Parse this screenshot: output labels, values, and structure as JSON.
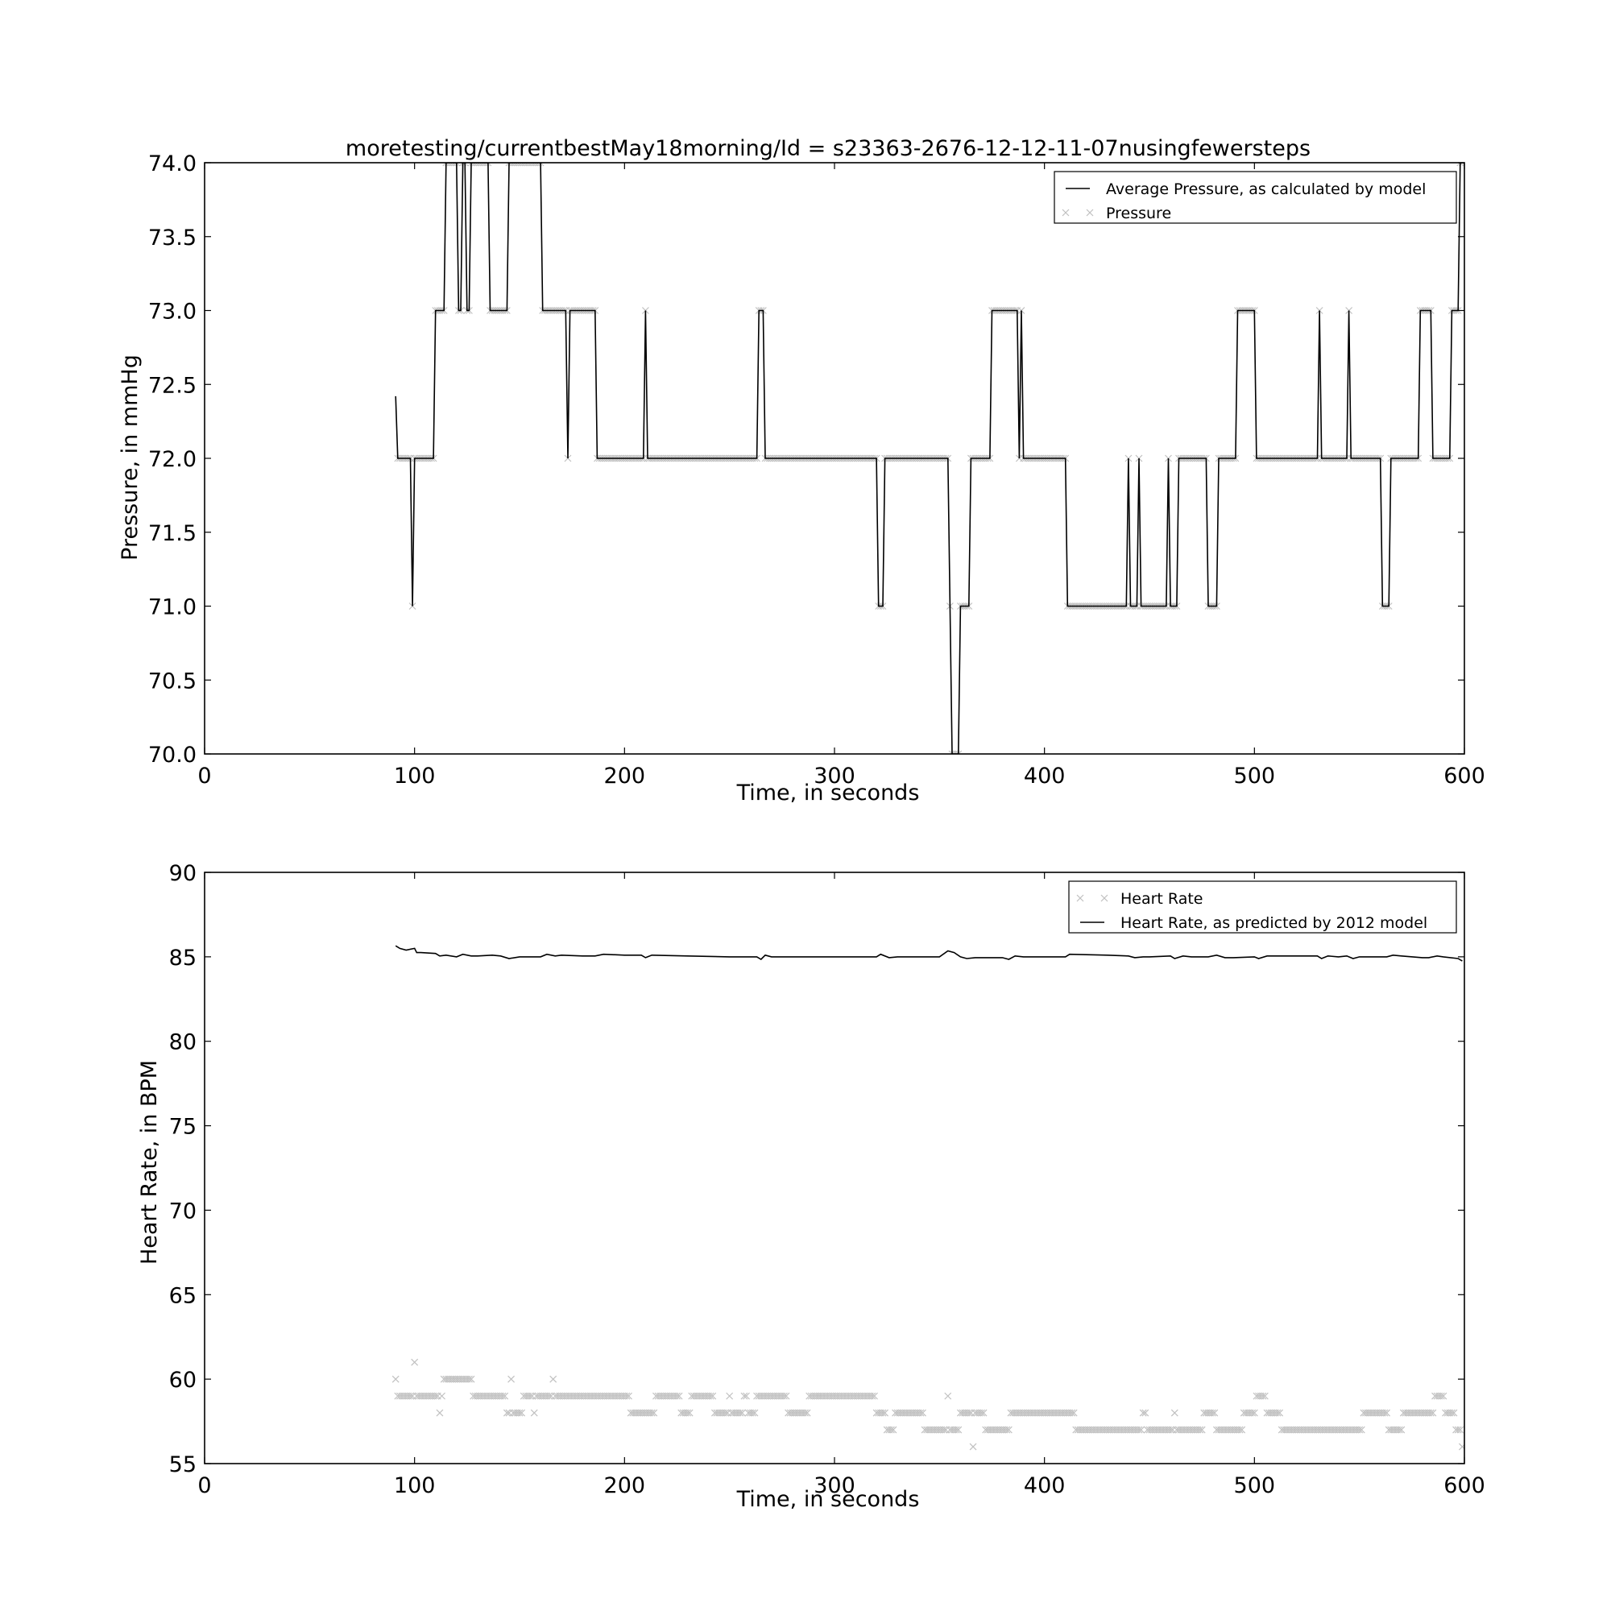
{
  "chart_data": [
    {
      "type": "line",
      "title": "moretesting/currentbestMay18morning/Id = s23363-2676-12-12-11-07nusingfewersteps",
      "xlabel": "Time, in seconds",
      "ylabel": "Pressure, in mmHg",
      "xlim": [
        0,
        600
      ],
      "ylim": [
        70.0,
        74.0
      ],
      "xticks": [
        "0",
        "100",
        "200",
        "300",
        "400",
        "500",
        "600"
      ],
      "yticks": [
        "70.0",
        "70.5",
        "71.0",
        "71.5",
        "72.0",
        "72.5",
        "73.0",
        "73.5",
        "74.0"
      ],
      "grid": false,
      "legend_position": "top-right",
      "series": [
        {
          "name": "Average Pressure, as calculated by model",
          "style": "line",
          "color": "#000000",
          "x": [
            91,
            92,
            93,
            98,
            99,
            100,
            101,
            109,
            110,
            114,
            115,
            120,
            121,
            122,
            123,
            124,
            125,
            126,
            127,
            128,
            129,
            135,
            136,
            144,
            145,
            160,
            161,
            172,
            173,
            174,
            186,
            187,
            209,
            210,
            211,
            263,
            264,
            266,
            267,
            320,
            321,
            323,
            324,
            354,
            355,
            356,
            357,
            359,
            360,
            364,
            365,
            374,
            375,
            387,
            388,
            389,
            390,
            410,
            411,
            439,
            440,
            441,
            442,
            444,
            445,
            446,
            447,
            458,
            459,
            460,
            461,
            463,
            464,
            477,
            478,
            482,
            483,
            491,
            492,
            500,
            501,
            530,
            531,
            532,
            533,
            544,
            545,
            546,
            547,
            560,
            561,
            564,
            565,
            578,
            579,
            584,
            585,
            593,
            594,
            597,
            598,
            599
          ],
          "y": [
            72.42,
            72.0,
            72.0,
            72.0,
            71.0,
            72.0,
            72.0,
            72.0,
            73.0,
            73.0,
            74.0,
            74.0,
            73.0,
            73.0,
            74.0,
            74.0,
            73.0,
            73.0,
            74.0,
            74.0,
            74.0,
            74.0,
            73.0,
            73.0,
            74.0,
            74.0,
            73.0,
            73.0,
            72.0,
            73.0,
            73.0,
            72.0,
            72.0,
            73.0,
            72.0,
            72.0,
            73.0,
            73.0,
            72.0,
            72.0,
            71.0,
            71.0,
            72.0,
            72.0,
            71.0,
            70.0,
            70.0,
            70.0,
            71.0,
            71.0,
            72.0,
            72.0,
            73.0,
            73.0,
            72.0,
            73.0,
            72.0,
            72.0,
            71.0,
            71.0,
            72.0,
            71.0,
            71.0,
            71.0,
            72.0,
            71.0,
            71.0,
            71.0,
            72.0,
            71.0,
            71.0,
            71.0,
            72.0,
            72.0,
            71.0,
            71.0,
            72.0,
            72.0,
            73.0,
            73.0,
            72.0,
            72.0,
            73.0,
            72.0,
            72.0,
            72.0,
            73.0,
            72.0,
            72.0,
            72.0,
            71.0,
            71.0,
            72.0,
            72.0,
            73.0,
            73.0,
            72.0,
            72.0,
            73.0,
            73.0,
            74.0,
            74.0
          ]
        },
        {
          "name": "Pressure",
          "style": "marker-x",
          "color": "#c0c0c0",
          "segments": [
            {
              "from": 92,
              "to": 98,
              "y": 72.0
            },
            {
              "from": 99,
              "to": 99,
              "y": 71.0
            },
            {
              "from": 100,
              "to": 109,
              "y": 72.0
            },
            {
              "from": 110,
              "to": 114,
              "y": 73.0
            },
            {
              "from": 115,
              "to": 120,
              "y": 74.0
            },
            {
              "from": 121,
              "to": 122,
              "y": 73.0
            },
            {
              "from": 123,
              "to": 124,
              "y": 74.0
            },
            {
              "from": 125,
              "to": 126,
              "y": 73.0
            },
            {
              "from": 127,
              "to": 135,
              "y": 74.0
            },
            {
              "from": 136,
              "to": 144,
              "y": 73.0
            },
            {
              "from": 145,
              "to": 160,
              "y": 74.0
            },
            {
              "from": 161,
              "to": 172,
              "y": 73.0
            },
            {
              "from": 173,
              "to": 173,
              "y": 72.0
            },
            {
              "from": 174,
              "to": 186,
              "y": 73.0
            },
            {
              "from": 187,
              "to": 209,
              "y": 72.0
            },
            {
              "from": 210,
              "to": 210,
              "y": 73.0
            },
            {
              "from": 211,
              "to": 263,
              "y": 72.0
            },
            {
              "from": 264,
              "to": 266,
              "y": 73.0
            },
            {
              "from": 267,
              "to": 320,
              "y": 72.0
            },
            {
              "from": 321,
              "to": 323,
              "y": 71.0
            },
            {
              "from": 324,
              "to": 354,
              "y": 72.0
            },
            {
              "from": 355,
              "to": 355,
              "y": 71.0
            },
            {
              "from": 356,
              "to": 359,
              "y": 70.0
            },
            {
              "from": 360,
              "to": 364,
              "y": 71.0
            },
            {
              "from": 365,
              "to": 374,
              "y": 72.0
            },
            {
              "from": 375,
              "to": 387,
              "y": 73.0
            },
            {
              "from": 388,
              "to": 388,
              "y": 72.0
            },
            {
              "from": 389,
              "to": 389,
              "y": 73.0
            },
            {
              "from": 390,
              "to": 410,
              "y": 72.0
            },
            {
              "from": 411,
              "to": 439,
              "y": 71.0
            },
            {
              "from": 440,
              "to": 440,
              "y": 72.0
            },
            {
              "from": 441,
              "to": 444,
              "y": 71.0
            },
            {
              "from": 445,
              "to": 445,
              "y": 72.0
            },
            {
              "from": 446,
              "to": 458,
              "y": 71.0
            },
            {
              "from": 459,
              "to": 459,
              "y": 72.0
            },
            {
              "from": 460,
              "to": 463,
              "y": 71.0
            },
            {
              "from": 464,
              "to": 477,
              "y": 72.0
            },
            {
              "from": 478,
              "to": 482,
              "y": 71.0
            },
            {
              "from": 483,
              "to": 491,
              "y": 72.0
            },
            {
              "from": 492,
              "to": 500,
              "y": 73.0
            },
            {
              "from": 501,
              "to": 530,
              "y": 72.0
            },
            {
              "from": 531,
              "to": 531,
              "y": 73.0
            },
            {
              "from": 532,
              "to": 544,
              "y": 72.0
            },
            {
              "from": 545,
              "to": 545,
              "y": 73.0
            },
            {
              "from": 546,
              "to": 560,
              "y": 72.0
            },
            {
              "from": 561,
              "to": 564,
              "y": 71.0
            },
            {
              "from": 565,
              "to": 578,
              "y": 72.0
            },
            {
              "from": 579,
              "to": 584,
              "y": 73.0
            },
            {
              "from": 585,
              "to": 593,
              "y": 72.0
            },
            {
              "from": 594,
              "to": 597,
              "y": 73.0
            },
            {
              "from": 598,
              "to": 599,
              "y": 74.0
            }
          ]
        }
      ]
    },
    {
      "type": "line",
      "title": "",
      "xlabel": "Time, in seconds",
      "ylabel": "Heart Rate, in BPM",
      "xlim": [
        0,
        600
      ],
      "ylim": [
        55,
        90
      ],
      "xticks": [
        "0",
        "100",
        "200",
        "300",
        "400",
        "500",
        "600"
      ],
      "yticks": [
        "55",
        "60",
        "65",
        "70",
        "75",
        "80",
        "85",
        "90"
      ],
      "grid": false,
      "legend_position": "top-right",
      "series": [
        {
          "name": "Heart Rate",
          "style": "marker-x",
          "color": "#c0c0c0",
          "segments": [
            {
              "from": 91,
              "to": 91,
              "y": 60
            },
            {
              "from": 92,
              "to": 99,
              "y": 59
            },
            {
              "from": 100,
              "to": 100,
              "y": 61
            },
            {
              "from": 101,
              "to": 111,
              "y": 59
            },
            {
              "from": 112,
              "to": 112,
              "y": 58
            },
            {
              "from": 113,
              "to": 113,
              "y": 59
            },
            {
              "from": 114,
              "to": 127,
              "y": 60
            },
            {
              "from": 128,
              "to": 143,
              "y": 59
            },
            {
              "from": 144,
              "to": 145,
              "y": 58
            },
            {
              "from": 146,
              "to": 146,
              "y": 60
            },
            {
              "from": 147,
              "to": 151,
              "y": 58
            },
            {
              "from": 152,
              "to": 156,
              "y": 59
            },
            {
              "from": 157,
              "to": 157,
              "y": 58
            },
            {
              "from": 158,
              "to": 165,
              "y": 59
            },
            {
              "from": 166,
              "to": 166,
              "y": 60
            },
            {
              "from": 167,
              "to": 202,
              "y": 59
            },
            {
              "from": 203,
              "to": 214,
              "y": 58
            },
            {
              "from": 215,
              "to": 226,
              "y": 59
            },
            {
              "from": 227,
              "to": 231,
              "y": 58
            },
            {
              "from": 232,
              "to": 242,
              "y": 59
            },
            {
              "from": 243,
              "to": 249,
              "y": 58
            },
            {
              "from": 250,
              "to": 250,
              "y": 59
            },
            {
              "from": 251,
              "to": 256,
              "y": 58
            },
            {
              "from": 257,
              "to": 258,
              "y": 59
            },
            {
              "from": 259,
              "to": 262,
              "y": 58
            },
            {
              "from": 263,
              "to": 277,
              "y": 59
            },
            {
              "from": 278,
              "to": 287,
              "y": 58
            },
            {
              "from": 288,
              "to": 319,
              "y": 59
            },
            {
              "from": 320,
              "to": 324,
              "y": 58
            },
            {
              "from": 325,
              "to": 328,
              "y": 57
            },
            {
              "from": 329,
              "to": 342,
              "y": 58
            },
            {
              "from": 343,
              "to": 353,
              "y": 57
            },
            {
              "from": 354,
              "to": 354,
              "y": 59
            },
            {
              "from": 355,
              "to": 359,
              "y": 57
            },
            {
              "from": 360,
              "to": 365,
              "y": 58
            },
            {
              "from": 366,
              "to": 366,
              "y": 56
            },
            {
              "from": 367,
              "to": 371,
              "y": 58
            },
            {
              "from": 372,
              "to": 383,
              "y": 57
            },
            {
              "from": 384,
              "to": 414,
              "y": 58
            },
            {
              "from": 415,
              "to": 446,
              "y": 57
            },
            {
              "from": 447,
              "to": 448,
              "y": 58
            },
            {
              "from": 449,
              "to": 461,
              "y": 57
            },
            {
              "from": 462,
              "to": 462,
              "y": 58
            },
            {
              "from": 463,
              "to": 475,
              "y": 57
            },
            {
              "from": 476,
              "to": 481,
              "y": 58
            },
            {
              "from": 482,
              "to": 494,
              "y": 57
            },
            {
              "from": 495,
              "to": 500,
              "y": 58
            },
            {
              "from": 501,
              "to": 505,
              "y": 59
            },
            {
              "from": 506,
              "to": 512,
              "y": 58
            },
            {
              "from": 513,
              "to": 551,
              "y": 57
            },
            {
              "from": 552,
              "to": 563,
              "y": 58
            },
            {
              "from": 564,
              "to": 570,
              "y": 57
            },
            {
              "from": 571,
              "to": 585,
              "y": 58
            },
            {
              "from": 586,
              "to": 590,
              "y": 59
            },
            {
              "from": 591,
              "to": 595,
              "y": 58
            },
            {
              "from": 596,
              "to": 598,
              "y": 57
            },
            {
              "from": 599,
              "to": 599,
              "y": 56
            }
          ]
        },
        {
          "name": "Heart Rate, as predicted by 2012 model",
          "style": "line",
          "color": "#000000",
          "x": [
            91,
            93,
            96,
            100,
            101,
            103,
            110,
            112,
            115,
            120,
            123,
            127,
            130,
            137,
            141,
            145,
            150,
            160,
            163,
            167,
            170,
            180,
            186,
            190,
            200,
            208,
            210,
            213,
            230,
            250,
            263,
            265,
            267,
            270,
            300,
            320,
            322,
            326,
            330,
            350,
            354,
            357,
            360,
            363,
            367,
            370,
            380,
            383,
            386,
            390,
            400,
            410,
            412,
            430,
            440,
            443,
            447,
            450,
            460,
            462,
            466,
            470,
            478,
            482,
            486,
            490,
            500,
            502,
            506,
            510,
            530,
            532,
            535,
            540,
            544,
            547,
            550,
            560,
            563,
            566,
            570,
            580,
            583,
            587,
            590,
            597,
            599
          ],
          "y": [
            85.65,
            85.5,
            85.4,
            85.5,
            85.25,
            85.25,
            85.2,
            85.05,
            85.1,
            85.0,
            85.15,
            85.05,
            85.05,
            85.1,
            85.05,
            84.9,
            85.0,
            85.0,
            85.15,
            85.05,
            85.1,
            85.05,
            85.05,
            85.15,
            85.1,
            85.1,
            84.95,
            85.1,
            85.05,
            85.0,
            85.0,
            84.85,
            85.1,
            85.0,
            85.0,
            85.0,
            85.15,
            84.95,
            85.0,
            85.0,
            85.35,
            85.25,
            85.0,
            84.9,
            84.95,
            84.95,
            84.95,
            84.85,
            85.05,
            85.0,
            85.0,
            85.0,
            85.15,
            85.1,
            85.05,
            84.95,
            85.0,
            85.0,
            85.05,
            84.9,
            85.05,
            85.0,
            85.0,
            85.1,
            84.95,
            84.95,
            85.0,
            84.9,
            85.05,
            85.05,
            85.05,
            84.9,
            85.05,
            85.0,
            85.05,
            84.9,
            85.0,
            85.0,
            85.0,
            85.1,
            85.05,
            84.95,
            84.95,
            85.05,
            85.0,
            84.9,
            84.75
          ]
        }
      ]
    }
  ]
}
